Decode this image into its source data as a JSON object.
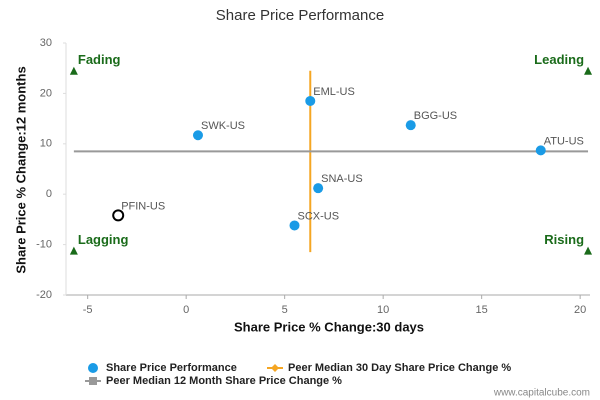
{
  "chart_data": {
    "type": "scatter",
    "title": "Share Price Performance",
    "x_label": "Share Price % Change:30 days",
    "y_label": "Share Price % Change:12 months",
    "xlim": [
      -6.1,
      20.5
    ],
    "xticks": [
      -5,
      0,
      5,
      10,
      15,
      20
    ],
    "ylim": [
      -20,
      30
    ],
    "yticks": [
      30,
      20,
      10,
      0,
      -10,
      -20
    ],
    "series": [
      {
        "name": "Share Price Performance",
        "color": "#1a9be6",
        "labels": [
          "SWK-US",
          "EML-US",
          "BGG-US",
          "ATU-US",
          "SNA-US",
          "SCX-US",
          "PFIN-US"
        ],
        "x": [
          0.6,
          6.3,
          11.4,
          18.0,
          6.7,
          5.5,
          -3.45
        ],
        "values": [
          11.7,
          18.5,
          13.7,
          8.7,
          1.2,
          -6.2,
          -4.2
        ],
        "highlight_index": 6
      },
      {
        "name": "Peer Median 30 Day Share Price Change %",
        "color": "#f5a623",
        "x": [
          6.3,
          6.3
        ],
        "values": [
          24.5,
          -11.5
        ]
      },
      {
        "name": "Peer Median 12 Month Share Price Change %",
        "color": "#999999",
        "x": [
          -5.7,
          20.4
        ],
        "values": [
          8.5,
          8.5
        ]
      }
    ],
    "annotations": [
      {
        "text": "Fading",
        "x": -5.7,
        "y": 24.5,
        "side": "left"
      },
      {
        "text": "Leading",
        "x": 20.4,
        "y": 24.5,
        "side": "right"
      },
      {
        "text": "Lagging",
        "x": -5.7,
        "y": -11.2,
        "side": "left"
      },
      {
        "text": "Rising",
        "x": 20.4,
        "y": -11.2,
        "side": "right"
      }
    ],
    "annotation_color": "#1a6b1a",
    "source": "www.capitalcube.com"
  }
}
